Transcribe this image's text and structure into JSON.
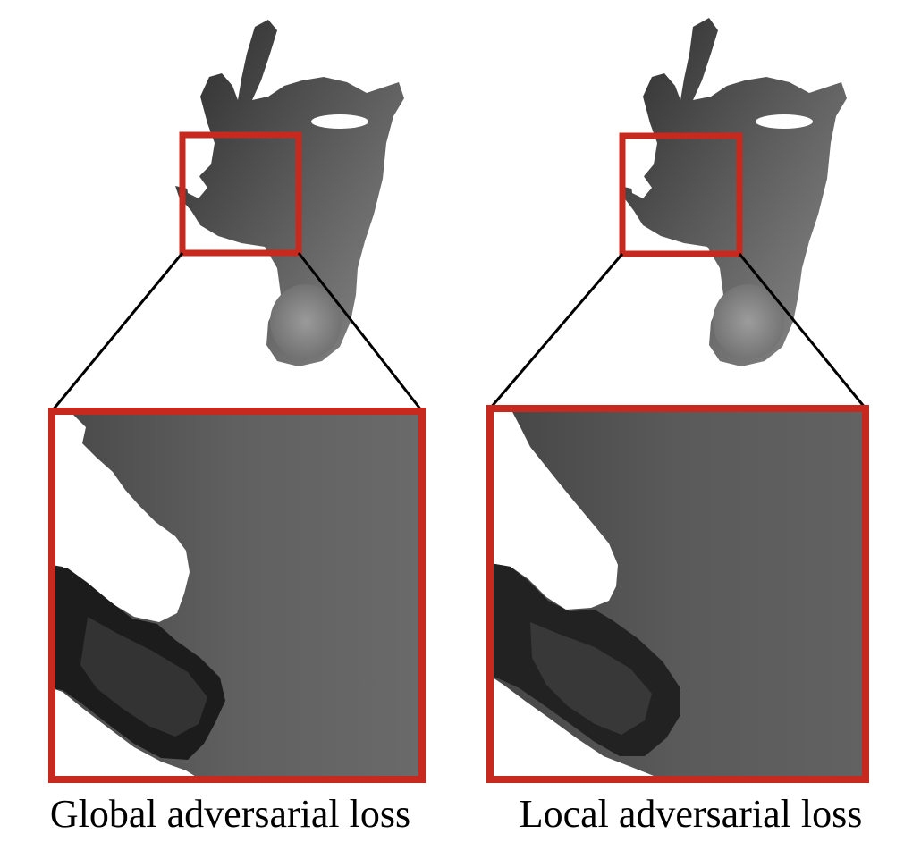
{
  "panels": [
    {
      "caption": "Global adversarial loss"
    },
    {
      "caption": "Local adversarial loss"
    }
  ],
  "colors": {
    "highlight_box": "#c8291e",
    "connector_line": "#000000",
    "background": "#ffffff"
  },
  "icons": {
    "thumbnail": "hand-depth-map",
    "zoom": "zoomed-crop"
  }
}
